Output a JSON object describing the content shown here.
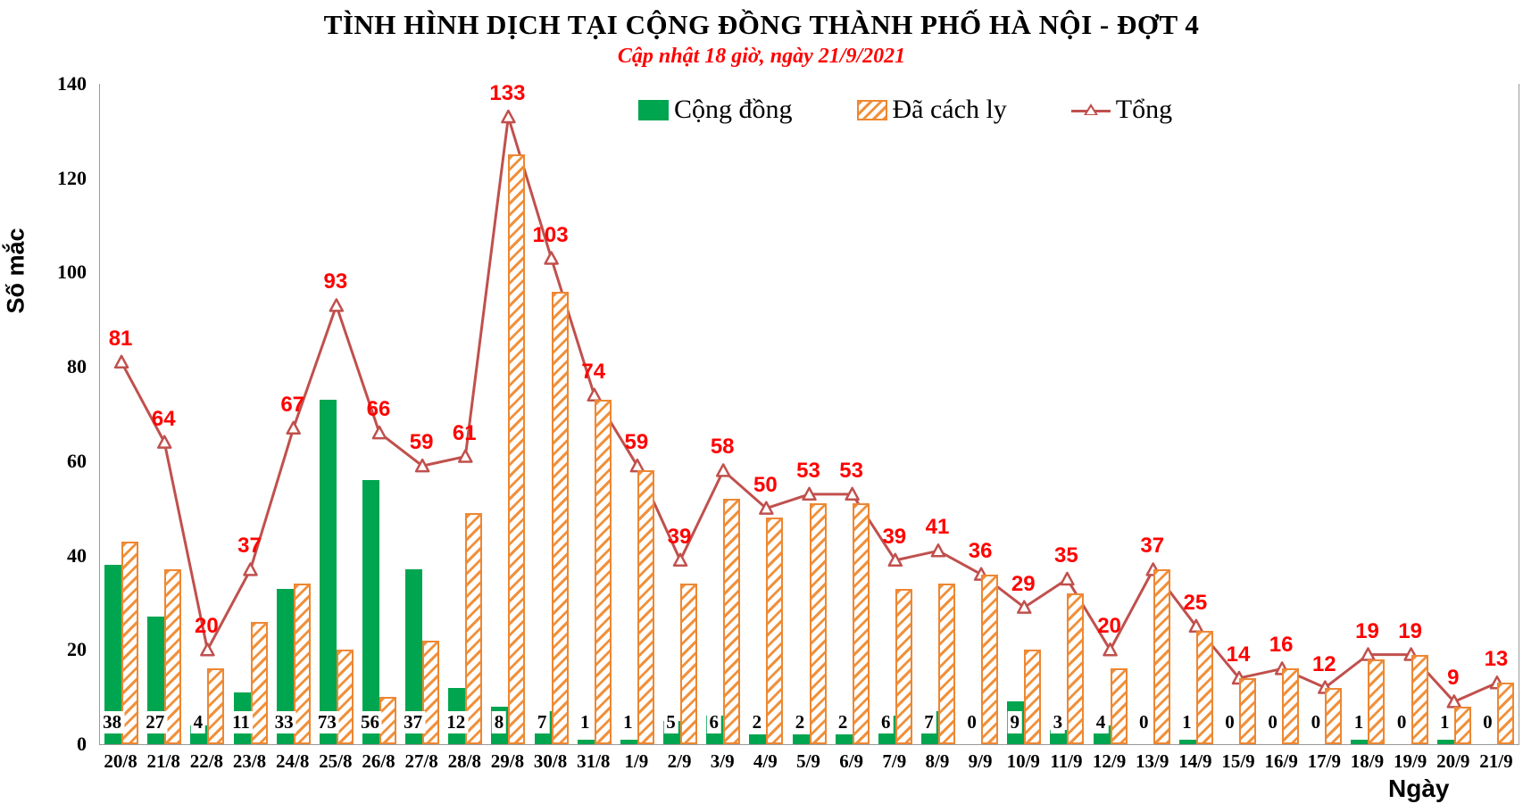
{
  "title": "TÌNH HÌNH DỊCH TẠI CỘNG ĐỒNG THÀNH PHỐ HÀ NỘI - ĐỢT 4",
  "subtitle": "Cập nhật 18 giờ, ngày 21/9/2021",
  "colors": {
    "community_green": "#00A550",
    "isolated_orange": "#ED8733",
    "total_line": "#C0504D",
    "total_label_red": "#FF0000",
    "axis_gray": "#9A9A9A"
  },
  "chart_data": {
    "type": "bar",
    "title": "TÌNH HÌNH DỊCH TẠI CỘNG ĐỒNG THÀNH PHỐ HÀ NỘI - ĐỢT 4",
    "subtitle": "Cập nhật 18 giờ, ngày 21/9/2021",
    "xlabel": "Ngày",
    "ylabel": "Số mắc",
    "ylim": [
      0,
      140
    ],
    "yticks": [
      0,
      20,
      40,
      60,
      80,
      100,
      120,
      140
    ],
    "grid": false,
    "legend_position": "top-center",
    "categories": [
      "20/8",
      "21/8",
      "22/8",
      "23/8",
      "24/8",
      "25/8",
      "26/8",
      "27/8",
      "28/8",
      "29/8",
      "30/8",
      "31/8",
      "1/9",
      "2/9",
      "3/9",
      "4/9",
      "5/9",
      "6/9",
      "7/9",
      "8/9",
      "9/9",
      "10/9",
      "11/9",
      "12/9",
      "13/9",
      "14/9",
      "15/9",
      "16/9",
      "17/9",
      "18/9",
      "19/9",
      "20/9",
      "21/9"
    ],
    "series": [
      {
        "name": "Cộng đồng",
        "type": "bar",
        "color": "#00A550",
        "values": [
          38,
          27,
          4,
          11,
          33,
          73,
          56,
          37,
          12,
          8,
          7,
          1,
          1,
          5,
          6,
          2,
          2,
          2,
          6,
          7,
          0,
          9,
          3,
          4,
          0,
          1,
          0,
          0,
          0,
          1,
          0,
          1,
          0
        ],
        "labels_shown": true
      },
      {
        "name": "Đã cách ly",
        "type": "bar",
        "style": "hatched",
        "color": "#ED8733",
        "values": [
          43,
          37,
          16,
          26,
          34,
          20,
          10,
          22,
          49,
          125,
          96,
          73,
          58,
          34,
          52,
          48,
          51,
          51,
          33,
          34,
          36,
          20,
          32,
          16,
          37,
          24,
          14,
          16,
          12,
          18,
          19,
          8,
          13
        ],
        "labels_shown": false
      },
      {
        "name": "Tổng",
        "type": "line",
        "color": "#C0504D",
        "marker": "open-triangle",
        "label_color": "#FF0000",
        "values": [
          81,
          64,
          20,
          37,
          67,
          93,
          66,
          59,
          61,
          133,
          103,
          74,
          59,
          39,
          58,
          50,
          53,
          53,
          39,
          41,
          36,
          29,
          35,
          20,
          37,
          25,
          14,
          16,
          12,
          19,
          19,
          9,
          13
        ],
        "labels_shown": true
      }
    ]
  }
}
